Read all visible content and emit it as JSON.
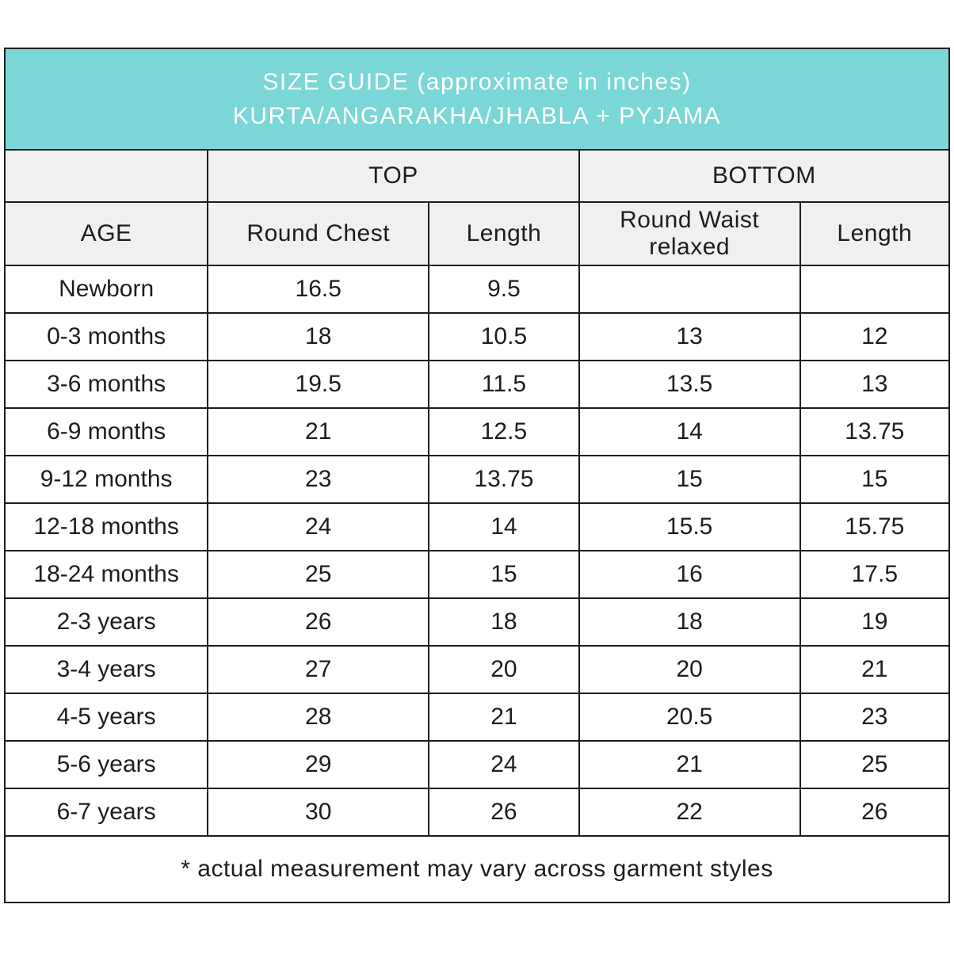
{
  "banner": {
    "line1": "SIZE GUIDE (approximate in inches)",
    "line2": "KURTA/ANGARAKHA/JHABLA + PYJAMA",
    "background_color": "#7bd7d7",
    "text_color": "#ffffff"
  },
  "table": {
    "group_headers": {
      "age_spacer": "",
      "top": "TOP",
      "bottom": "BOTTOM"
    },
    "column_headers": {
      "age": "AGE",
      "round_chest": "Round Chest",
      "top_length": "Length",
      "round_waist": "Round Waist relaxed",
      "bottom_length": "Length"
    },
    "rows": [
      {
        "age": "Newborn",
        "values": [
          "16.5",
          "9.5",
          "",
          ""
        ]
      },
      {
        "age": "0-3 months",
        "values": [
          "18",
          "10.5",
          "13",
          "12"
        ]
      },
      {
        "age": "3-6 months",
        "values": [
          "19.5",
          "11.5",
          "13.5",
          "13"
        ]
      },
      {
        "age": "6-9 months",
        "values": [
          "21",
          "12.5",
          "14",
          "13.75"
        ]
      },
      {
        "age": "9-12 months",
        "values": [
          "23",
          "13.75",
          "15",
          "15"
        ]
      },
      {
        "age": "12-18 months",
        "values": [
          "24",
          "14",
          "15.5",
          "15.75"
        ]
      },
      {
        "age": "18-24 months",
        "values": [
          "25",
          "15",
          "16",
          "17.5"
        ]
      },
      {
        "age": "2-3 years",
        "values": [
          "26",
          "18",
          "18",
          "19"
        ]
      },
      {
        "age": "3-4 years",
        "values": [
          "27",
          "20",
          "20",
          "21"
        ]
      },
      {
        "age": "4-5 years",
        "values": [
          "28",
          "21",
          "20.5",
          "23"
        ]
      },
      {
        "age": "5-6 years",
        "values": [
          "29",
          "24",
          "21",
          "25"
        ]
      },
      {
        "age": "6-7 years",
        "values": [
          "30",
          "26",
          "22",
          "26"
        ]
      }
    ],
    "footnote": "* actual measurement may vary across garment styles",
    "header_background": "#f0f0f0",
    "border_color": "#1d1d1d"
  }
}
